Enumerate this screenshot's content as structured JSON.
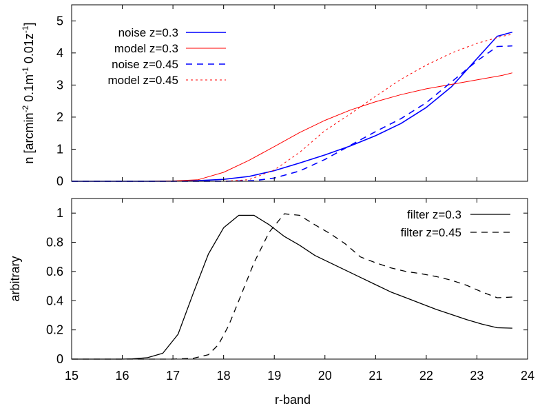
{
  "chart_data": [
    {
      "type": "line",
      "panel": "top",
      "title": "",
      "xlabel": "",
      "ylabel_parts": [
        "n [arcmin",
        "-2",
        " 0.1m",
        "-1",
        " 0.01z",
        "-1",
        "]"
      ],
      "xlim": [
        15,
        24
      ],
      "ylim": [
        0,
        5.5
      ],
      "xticks": [
        15,
        16,
        17,
        18,
        19,
        20,
        21,
        22,
        23,
        24
      ],
      "yticks": [
        0,
        1,
        2,
        3,
        4,
        5
      ],
      "legend_position": "top-left",
      "series": [
        {
          "name": "noise z=0.3",
          "color": "#0000ff",
          "style": "solid",
          "width": 1.6,
          "x": [
            15,
            16.5,
            17,
            17.5,
            18,
            18.5,
            19,
            19.5,
            20,
            20.5,
            21,
            21.5,
            22,
            22.5,
            23,
            23.4,
            23.7
          ],
          "y": [
            0,
            0,
            0.005,
            0.02,
            0.06,
            0.15,
            0.33,
            0.57,
            0.82,
            1.1,
            1.42,
            1.8,
            2.3,
            2.95,
            3.82,
            4.52,
            4.65
          ]
        },
        {
          "name": "model z=0.3",
          "color": "#ff0000",
          "style": "solid",
          "width": 1.0,
          "x": [
            15,
            16.5,
            17,
            17.5,
            18,
            18.5,
            19,
            19.5,
            20,
            20.5,
            21,
            21.5,
            22,
            22.5,
            23,
            23.5,
            23.7
          ],
          "y": [
            0,
            0,
            0.01,
            0.05,
            0.28,
            0.65,
            1.08,
            1.52,
            1.9,
            2.22,
            2.48,
            2.7,
            2.88,
            3.02,
            3.16,
            3.3,
            3.38
          ]
        },
        {
          "name": "noise z=0.45",
          "color": "#0000ff",
          "style": "dashed",
          "width": 1.6,
          "x": [
            15,
            18,
            18.6,
            19,
            19.5,
            20,
            20.5,
            21,
            21.5,
            22,
            22.5,
            23,
            23.4,
            23.7
          ],
          "y": [
            0,
            0,
            0.02,
            0.1,
            0.32,
            0.68,
            1.12,
            1.55,
            1.95,
            2.45,
            3.1,
            3.75,
            4.2,
            4.22
          ]
        },
        {
          "name": "model z=0.45",
          "color": "#ff0000",
          "style": "dotted",
          "width": 1.0,
          "x": [
            15,
            18,
            18.5,
            19,
            19.5,
            20,
            20.5,
            21,
            21.5,
            22,
            22.5,
            23,
            23.5,
            23.7
          ],
          "y": [
            0,
            0,
            0.05,
            0.35,
            0.9,
            1.58,
            2.1,
            2.65,
            3.18,
            3.62,
            4.0,
            4.3,
            4.52,
            4.58
          ]
        }
      ]
    },
    {
      "type": "line",
      "panel": "bottom",
      "title": "",
      "xlabel": "r-band",
      "ylabel": "arbitrary",
      "xlim": [
        15,
        24
      ],
      "ylim": [
        0,
        1.1
      ],
      "xticks": [
        15,
        16,
        17,
        18,
        19,
        20,
        21,
        22,
        23,
        24
      ],
      "yticks": [
        "0",
        "0.2",
        "0.4",
        "0.6",
        "0.8",
        "1"
      ],
      "ytick_values": [
        0,
        0.2,
        0.4,
        0.6,
        0.8,
        1.0
      ],
      "legend_position": "top-right",
      "series": [
        {
          "name": "filter z=0.3",
          "color": "#000000",
          "style": "solid",
          "width": 1.3,
          "x": [
            15,
            16,
            16.2,
            16.5,
            16.8,
            17.1,
            17.4,
            17.7,
            18,
            18.3,
            18.6,
            18.9,
            19.2,
            19.5,
            19.8,
            20.1,
            20.4,
            20.7,
            21,
            21.3,
            21.6,
            21.9,
            22.2,
            22.5,
            22.8,
            23.1,
            23.4,
            23.7
          ],
          "y": [
            0,
            0,
            0.002,
            0.01,
            0.04,
            0.17,
            0.45,
            0.72,
            0.9,
            0.985,
            0.985,
            0.92,
            0.84,
            0.78,
            0.71,
            0.66,
            0.61,
            0.56,
            0.51,
            0.46,
            0.42,
            0.38,
            0.34,
            0.305,
            0.27,
            0.24,
            0.215,
            0.212
          ]
        },
        {
          "name": "filter z=0.45",
          "color": "#000000",
          "style": "dashed",
          "width": 1.3,
          "x": [
            15,
            17,
            17.4,
            17.7,
            17.9,
            18.1,
            18.3,
            18.6,
            18.9,
            19.2,
            19.5,
            19.8,
            20.1,
            20.4,
            20.7,
            21,
            21.3,
            21.6,
            21.9,
            22.2,
            22.5,
            22.8,
            23.1,
            23.4,
            23.7
          ],
          "y": [
            0,
            0,
            0.005,
            0.03,
            0.1,
            0.23,
            0.4,
            0.66,
            0.87,
            0.995,
            0.985,
            0.92,
            0.86,
            0.79,
            0.7,
            0.66,
            0.625,
            0.6,
            0.585,
            0.565,
            0.54,
            0.505,
            0.46,
            0.42,
            0.425
          ]
        }
      ]
    }
  ]
}
